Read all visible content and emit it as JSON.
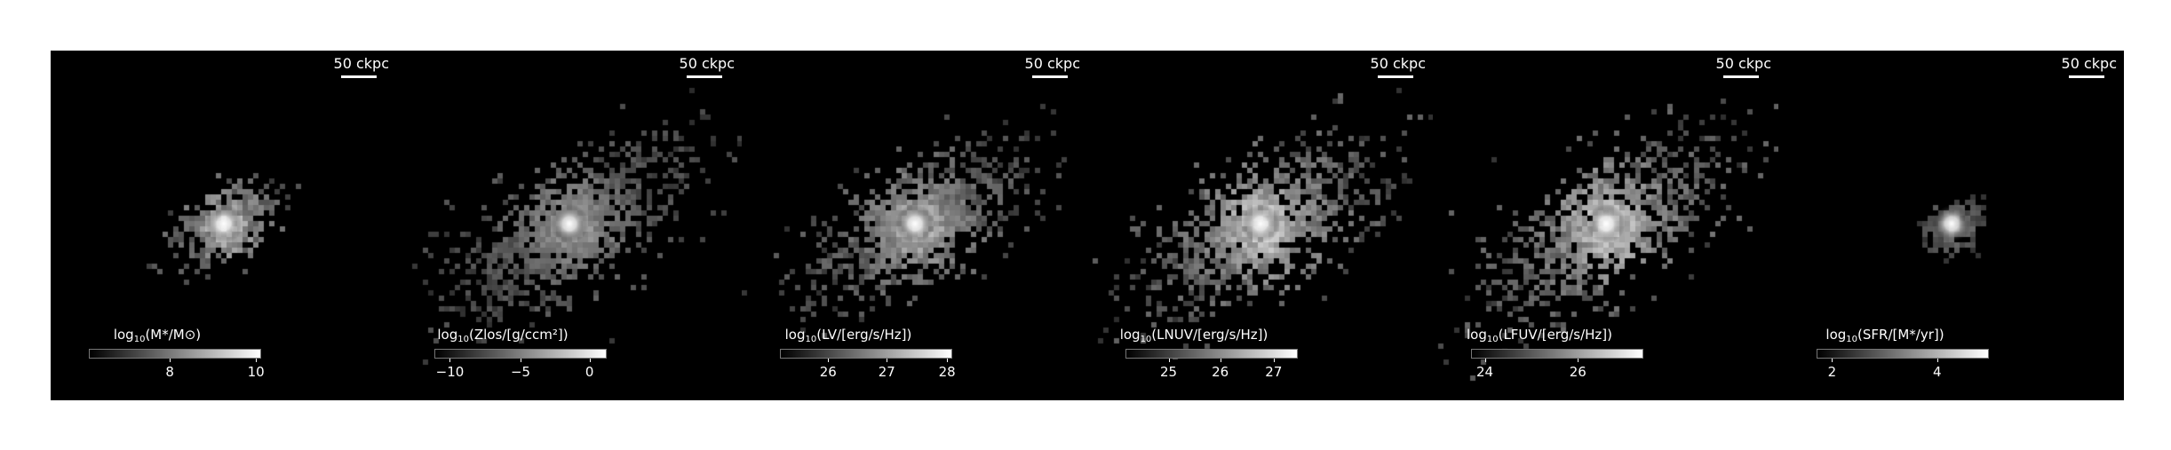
{
  "scale_bar": "50 ckpc",
  "panels": [
    {
      "quantity": "log10(M*/M⊙)",
      "label_parts": {
        "pre": "log",
        "sub": "10",
        "post": "(M*/M⊙)"
      },
      "ticks": [
        "8",
        "10"
      ],
      "tick_fractions": [
        0.47,
        0.97
      ],
      "brightness": 0.9,
      "extent": 0.35,
      "spread": 0.35
    },
    {
      "quantity": "log10(Zlos/[g/ccm²])",
      "label_parts": {
        "pre": "log",
        "sub": "10",
        "post": "(Zlos/[g/ccm²])"
      },
      "ticks": [
        "−10",
        "−5",
        "0"
      ],
      "tick_fractions": [
        0.09,
        0.5,
        0.9
      ],
      "brightness": 0.55,
      "extent": 1.0,
      "spread": 1.0
    },
    {
      "quantity": "log10(LV/[erg/s/Hz])",
      "label_parts": {
        "pre": "log",
        "sub": "10",
        "post": "(LV/[erg/s/Hz])"
      },
      "ticks": [
        "26",
        "27",
        "28"
      ],
      "tick_fractions": [
        0.28,
        0.62,
        0.97
      ],
      "brightness": 0.7,
      "extent": 0.95,
      "spread": 0.85
    },
    {
      "quantity": "log10(LNUV/[erg/s/Hz])",
      "label_parts": {
        "pre": "log",
        "sub": "10",
        "post": "(LNUV/[erg/s/Hz])"
      },
      "ticks": [
        "25",
        "26",
        "27"
      ],
      "tick_fractions": [
        0.25,
        0.55,
        0.86
      ],
      "brightness": 0.8,
      "extent": 1.0,
      "spread": 1.0
    },
    {
      "quantity": "log10(LFUV/[erg/s/Hz])",
      "label_parts": {
        "pre": "log",
        "sub": "10",
        "post": "(LFUV/[erg/s/Hz])"
      },
      "ticks": [
        "24",
        "26"
      ],
      "tick_fractions": [
        0.08,
        0.62
      ],
      "brightness": 0.8,
      "extent": 1.0,
      "spread": 1.0
    },
    {
      "quantity": "log10(SFR/[M*/yr])",
      "label_parts": {
        "pre": "log",
        "sub": "10",
        "post": "(SFR/[M*/yr])"
      },
      "ticks": [
        "2",
        "4"
      ],
      "tick_fractions": [
        0.09,
        0.7
      ],
      "brightness": 0.5,
      "extent": 0.15,
      "spread": 0.12
    }
  ],
  "colors": {
    "background": "#000000",
    "text": "#ffffff",
    "page": "#ffffff"
  }
}
